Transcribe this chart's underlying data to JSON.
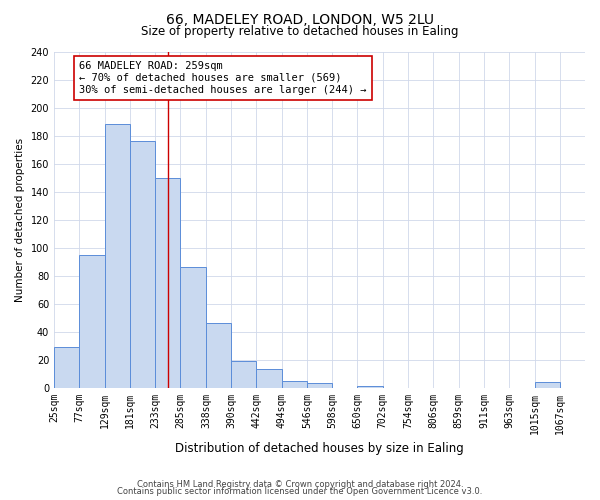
{
  "title": "66, MADELEY ROAD, LONDON, W5 2LU",
  "subtitle": "Size of property relative to detached houses in Ealing",
  "xlabel": "Distribution of detached houses by size in Ealing",
  "ylabel": "Number of detached properties",
  "bin_labels": [
    "25sqm",
    "77sqm",
    "129sqm",
    "181sqm",
    "233sqm",
    "285sqm",
    "338sqm",
    "390sqm",
    "442sqm",
    "494sqm",
    "546sqm",
    "598sqm",
    "650sqm",
    "702sqm",
    "754sqm",
    "806sqm",
    "859sqm",
    "911sqm",
    "963sqm",
    "1015sqm",
    "1067sqm"
  ],
  "bin_edges": [
    25,
    77,
    129,
    181,
    233,
    285,
    338,
    390,
    442,
    494,
    546,
    598,
    650,
    702,
    754,
    806,
    859,
    911,
    963,
    1015,
    1067,
    1119
  ],
  "bar_heights": [
    29,
    95,
    188,
    176,
    150,
    86,
    46,
    19,
    13,
    5,
    3,
    0,
    1,
    0,
    0,
    0,
    0,
    0,
    0,
    4,
    0
  ],
  "bar_color": "#c9d9f0",
  "bar_edge_color": "#5b8dd9",
  "property_size": 259,
  "vline_color": "#cc0000",
  "annotation_line1": "66 MADELEY ROAD: 259sqm",
  "annotation_line2": "← 70% of detached houses are smaller (569)",
  "annotation_line3": "30% of semi-detached houses are larger (244) →",
  "annotation_box_edge_color": "#cc0000",
  "ylim": [
    0,
    240
  ],
  "yticks": [
    0,
    20,
    40,
    60,
    80,
    100,
    120,
    140,
    160,
    180,
    200,
    220,
    240
  ],
  "footer_line1": "Contains HM Land Registry data © Crown copyright and database right 2024.",
  "footer_line2": "Contains public sector information licensed under the Open Government Licence v3.0.",
  "background_color": "#ffffff",
  "grid_color": "#d0d8ea",
  "title_fontsize": 10,
  "subtitle_fontsize": 8.5,
  "ylabel_fontsize": 7.5,
  "xlabel_fontsize": 8.5,
  "tick_fontsize": 7,
  "annotation_fontsize": 7.5,
  "footer_fontsize": 6
}
